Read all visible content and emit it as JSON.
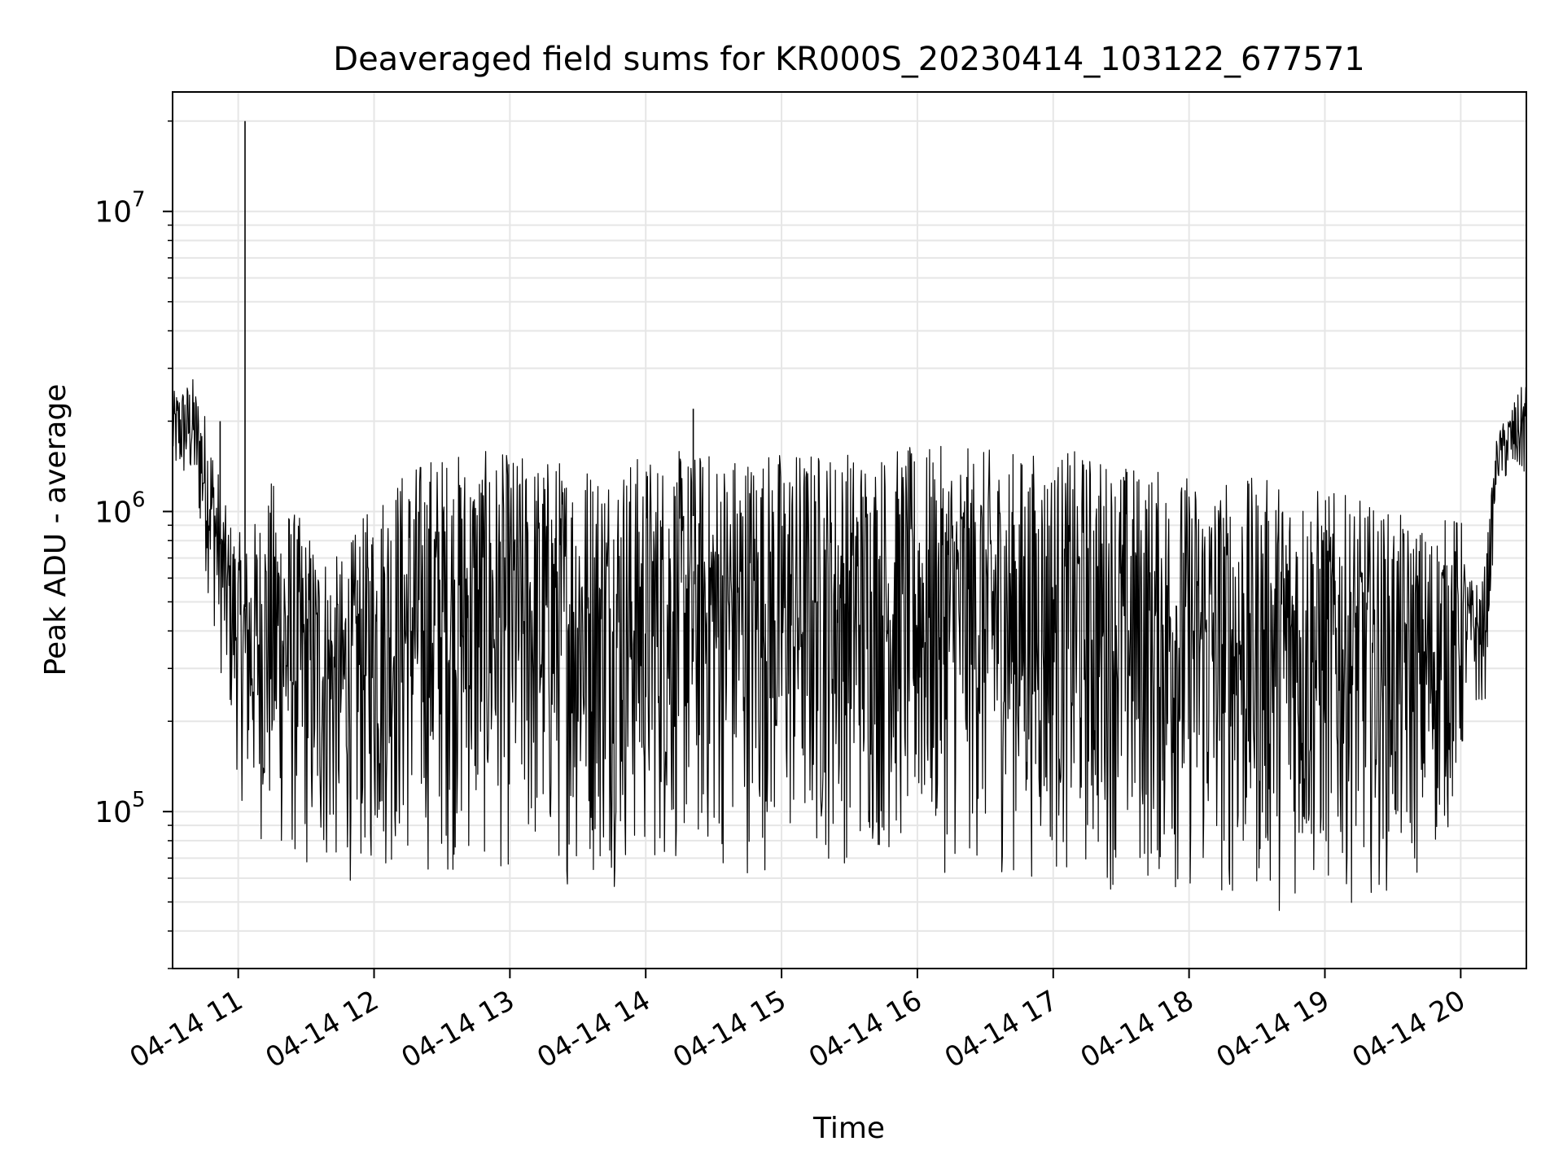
{
  "chart_data": {
    "type": "line",
    "title": "Deaveraged field sums for KR000S_20230414_103122_677571",
    "xlabel": "Time",
    "ylabel": "Peak ADU - average",
    "yscale": "log",
    "ylim": [
      30000,
      25000000
    ],
    "xlim": [
      "2023-04-14 10:31",
      "2023-04-14 20:29"
    ],
    "grid": true,
    "x_ticks": [
      {
        "t": "2023-04-14 11:00",
        "label": "04-14 11"
      },
      {
        "t": "2023-04-14 12:00",
        "label": "04-14 12"
      },
      {
        "t": "2023-04-14 13:00",
        "label": "04-14 13"
      },
      {
        "t": "2023-04-14 14:00",
        "label": "04-14 14"
      },
      {
        "t": "2023-04-14 15:00",
        "label": "04-14 15"
      },
      {
        "t": "2023-04-14 16:00",
        "label": "04-14 16"
      },
      {
        "t": "2023-04-14 17:00",
        "label": "04-14 17"
      },
      {
        "t": "2023-04-14 18:00",
        "label": "04-14 18"
      },
      {
        "t": "2023-04-14 19:00",
        "label": "04-14 19"
      },
      {
        "t": "2023-04-14 20:00",
        "label": "04-14 20"
      }
    ],
    "y_ticks": [
      {
        "value": 100000,
        "base": "10",
        "exp": "5"
      },
      {
        "value": 1000000,
        "base": "10",
        "exp": "6"
      },
      {
        "value": 10000000,
        "base": "10",
        "exp": "7"
      }
    ],
    "series": [
      {
        "color": "#000000",
        "envelope": [
          {
            "t": "2023-04-14 10:31",
            "high": 2500000,
            "low": 1200000
          },
          {
            "t": "2023-04-14 10:40",
            "high": 2800000,
            "low": 1100000
          },
          {
            "t": "2023-04-14 10:47",
            "high": 2000000,
            "low": 500000
          },
          {
            "t": "2023-04-14 10:55",
            "high": 1000000,
            "low": 200000
          },
          {
            "t": "2023-04-14 11:03",
            "high": 800000,
            "low": 90000
          },
          {
            "t": "2023-04-14 11:15",
            "high": 1300000,
            "low": 65000
          },
          {
            "t": "2023-04-14 11:30",
            "high": 900000,
            "low": 55000
          },
          {
            "t": "2023-04-14 11:45",
            "high": 700000,
            "low": 55000
          },
          {
            "t": "2023-04-14 12:05",
            "high": 1300000,
            "low": 58000
          },
          {
            "t": "2023-04-14 12:25",
            "high": 1600000,
            "low": 58000
          },
          {
            "t": "2023-04-14 12:45",
            "high": 1600000,
            "low": 60000
          },
          {
            "t": "2023-04-14 13:15",
            "high": 1550000,
            "low": 55000
          },
          {
            "t": "2023-04-14 13:45",
            "high": 1550000,
            "low": 55000
          },
          {
            "t": "2023-04-14 14:15",
            "high": 1600000,
            "low": 60000
          },
          {
            "t": "2023-04-14 14:45",
            "high": 1650000,
            "low": 60000
          },
          {
            "t": "2023-04-14 15:15",
            "high": 1650000,
            "low": 62000
          },
          {
            "t": "2023-04-14 15:45",
            "high": 1650000,
            "low": 65000
          },
          {
            "t": "2023-04-14 16:15",
            "high": 1650000,
            "low": 60000
          },
          {
            "t": "2023-04-14 16:45",
            "high": 1600000,
            "low": 58000
          },
          {
            "t": "2023-04-14 17:15",
            "high": 1600000,
            "low": 55000
          },
          {
            "t": "2023-04-14 17:45",
            "high": 1400000,
            "low": 50000
          },
          {
            "t": "2023-04-14 18:15",
            "high": 1300000,
            "low": 45000
          },
          {
            "t": "2023-04-14 18:45",
            "high": 1300000,
            "low": 45000
          },
          {
            "t": "2023-04-14 19:15",
            "high": 1100000,
            "low": 50000
          },
          {
            "t": "2023-04-14 19:45",
            "high": 900000,
            "low": 55000
          },
          {
            "t": "2023-04-14 20:00",
            "high": 1000000,
            "low": 100000
          },
          {
            "t": "2023-04-14 20:03",
            "high": 600000,
            "low": 250000
          },
          {
            "t": "2023-04-14 20:10",
            "high": 600000,
            "low": 180000
          },
          {
            "t": "2023-04-14 20:16",
            "high": 1800000,
            "low": 1200000
          },
          {
            "t": "2023-04-14 20:29",
            "high": 2800000,
            "low": 1200000
          }
        ],
        "spikes": [
          {
            "t": "2023-04-14 11:03",
            "value": 20000000
          },
          {
            "t": "2023-04-14 14:21",
            "value": 2200000
          },
          {
            "t": "2023-04-14 10:52",
            "value": 2000000
          }
        ]
      }
    ]
  }
}
